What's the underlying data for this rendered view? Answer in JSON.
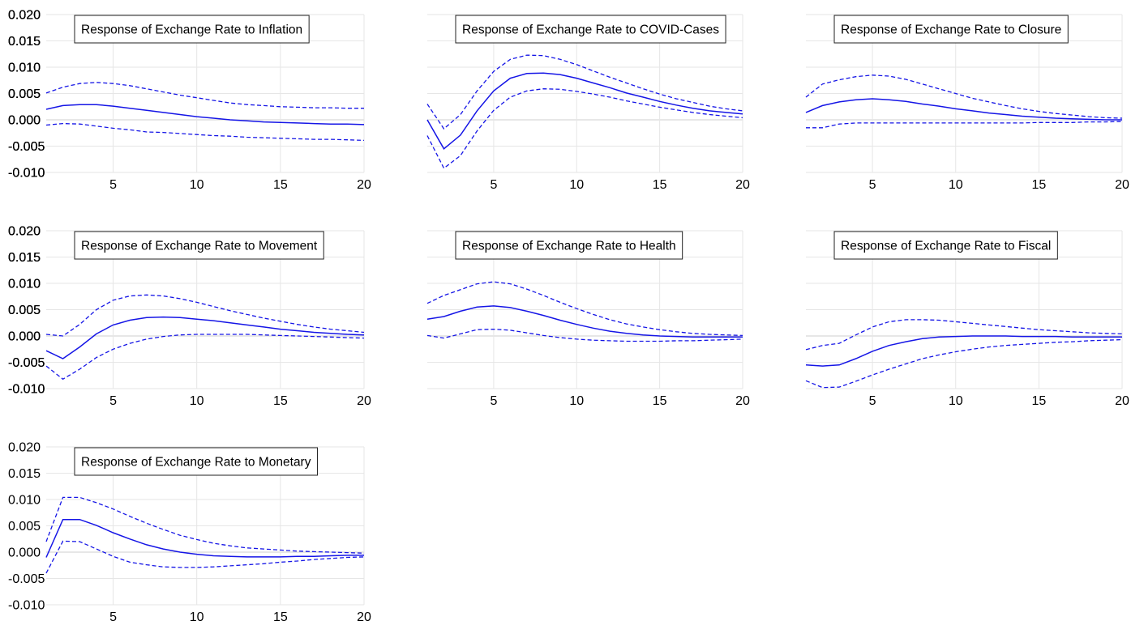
{
  "colors": {
    "line": "#1515e6",
    "grid": "#e6e6e6",
    "background": "#ffffff"
  },
  "chart_data": [
    {
      "type": "line",
      "title": "Response of Exchange Rate to Inflation",
      "x": [
        1,
        2,
        3,
        4,
        5,
        6,
        7,
        8,
        9,
        10,
        11,
        12,
        13,
        14,
        15,
        16,
        17,
        18,
        19,
        20
      ],
      "ylim": [
        -0.01,
        0.02
      ],
      "yticks": [
        "0.020",
        "0.015",
        "0.010",
        "0.005",
        "0.000",
        "-0.005",
        "-0.010"
      ],
      "xticks": [
        "5",
        "10",
        "15",
        "20"
      ],
      "series": [
        {
          "style": "dashed",
          "values": [
            0.0051,
            0.0062,
            0.0069,
            0.0071,
            0.0069,
            0.0065,
            0.0059,
            0.0053,
            0.0047,
            0.0042,
            0.0037,
            0.0032,
            0.0029,
            0.0027,
            0.0025,
            0.0024,
            0.0023,
            0.0023,
            0.0022,
            0.0022
          ]
        },
        {
          "style": "solid",
          "values": [
            0.002,
            0.0027,
            0.0029,
            0.0029,
            0.0026,
            0.0022,
            0.0018,
            0.0014,
            0.001,
            0.0006,
            0.0003,
            0.0,
            -0.0002,
            -0.0004,
            -0.0005,
            -0.0006,
            -0.0007,
            -0.0008,
            -0.0008,
            -0.0009
          ]
        },
        {
          "style": "dashed",
          "values": [
            -0.001,
            -0.0007,
            -0.0008,
            -0.0012,
            -0.0016,
            -0.0019,
            -0.0023,
            -0.0024,
            -0.0026,
            -0.0028,
            -0.003,
            -0.0031,
            -0.0033,
            -0.0034,
            -0.0035,
            -0.0036,
            -0.0037,
            -0.0037,
            -0.0038,
            -0.0039
          ]
        }
      ]
    },
    {
      "type": "line",
      "title": "Response of Exchange Rate to COVID-Cases",
      "x": [
        1,
        2,
        3,
        4,
        5,
        6,
        7,
        8,
        9,
        10,
        11,
        12,
        13,
        14,
        15,
        16,
        17,
        18,
        19,
        20
      ],
      "ylim": [
        -0.01,
        0.02
      ],
      "yticks": [
        "0.020",
        "0.015",
        "0.010",
        "0.005",
        "0.000",
        "-0.005",
        "-0.010"
      ],
      "xticks": [
        "5",
        "10",
        "15",
        "20"
      ],
      "series": [
        {
          "style": "dashed",
          "values": [
            0.003,
            -0.0017,
            0.001,
            0.0055,
            0.0092,
            0.0115,
            0.0123,
            0.0122,
            0.0115,
            0.0105,
            0.0093,
            0.0081,
            0.007,
            0.0059,
            0.0049,
            0.004,
            0.0033,
            0.0026,
            0.0021,
            0.0017
          ]
        },
        {
          "style": "solid",
          "values": [
            0.0,
            -0.0055,
            -0.0029,
            0.0017,
            0.0055,
            0.0079,
            0.0088,
            0.0089,
            0.0086,
            0.0079,
            0.007,
            0.0061,
            0.0051,
            0.0043,
            0.0035,
            0.0028,
            0.0022,
            0.0017,
            0.0014,
            0.0011
          ]
        },
        {
          "style": "dashed",
          "values": [
            -0.003,
            -0.0092,
            -0.0068,
            -0.0021,
            0.0018,
            0.0043,
            0.0055,
            0.0059,
            0.0058,
            0.0054,
            0.0049,
            0.0043,
            0.0036,
            0.003,
            0.0024,
            0.0019,
            0.0014,
            0.001,
            0.0007,
            0.0004
          ]
        }
      ]
    },
    {
      "type": "line",
      "title": "Response of Exchange Rate to Closure",
      "x": [
        1,
        2,
        3,
        4,
        5,
        6,
        7,
        8,
        9,
        10,
        11,
        12,
        13,
        14,
        15,
        16,
        17,
        18,
        19,
        20
      ],
      "ylim": [
        -0.01,
        0.02
      ],
      "yticks": [
        "0.020",
        "0.015",
        "0.010",
        "0.005",
        "0.000",
        "-0.005",
        "-0.010"
      ],
      "xticks": [
        "5",
        "10",
        "15",
        "20"
      ],
      "series": [
        {
          "style": "dashed",
          "values": [
            0.0043,
            0.0068,
            0.0076,
            0.0082,
            0.0085,
            0.0083,
            0.0077,
            0.0068,
            0.0059,
            0.005,
            0.0041,
            0.0034,
            0.0027,
            0.0021,
            0.0016,
            0.0012,
            0.0009,
            0.0006,
            0.0004,
            0.0003
          ]
        },
        {
          "style": "solid",
          "values": [
            0.0014,
            0.0027,
            0.0034,
            0.0038,
            0.004,
            0.0038,
            0.0035,
            0.003,
            0.0026,
            0.0021,
            0.0017,
            0.0013,
            0.001,
            0.0007,
            0.0005,
            0.0003,
            0.0002,
            0.0001,
            0.0,
            0.0
          ]
        },
        {
          "style": "dashed",
          "values": [
            -0.0015,
            -0.0015,
            -0.0008,
            -0.0006,
            -0.0006,
            -0.0006,
            -0.0006,
            -0.0006,
            -0.0006,
            -0.0006,
            -0.0006,
            -0.0006,
            -0.0006,
            -0.0006,
            -0.0005,
            -0.0005,
            -0.0005,
            -0.0004,
            -0.0004,
            -0.0003
          ]
        }
      ]
    },
    {
      "type": "line",
      "title": "Response of Exchange Rate to Movement",
      "x": [
        1,
        2,
        3,
        4,
        5,
        6,
        7,
        8,
        9,
        10,
        11,
        12,
        13,
        14,
        15,
        16,
        17,
        18,
        19,
        20
      ],
      "ylim": [
        -0.01,
        0.02
      ],
      "yticks": [
        "0.020",
        "0.015",
        "0.010",
        "0.005",
        "0.000",
        "-0.005",
        "-0.010"
      ],
      "xticks": [
        "5",
        "10",
        "15",
        "20"
      ],
      "series": [
        {
          "style": "dashed",
          "values": [
            0.0003,
            0.0,
            0.0022,
            0.005,
            0.0068,
            0.0076,
            0.0078,
            0.0076,
            0.0071,
            0.0064,
            0.0056,
            0.0048,
            0.0041,
            0.0034,
            0.0028,
            0.0022,
            0.0017,
            0.0013,
            0.001,
            0.0007
          ]
        },
        {
          "style": "solid",
          "values": [
            -0.0028,
            -0.0043,
            -0.0021,
            0.0004,
            0.0021,
            0.003,
            0.0035,
            0.0036,
            0.0035,
            0.0032,
            0.0029,
            0.0025,
            0.0021,
            0.0017,
            0.0013,
            0.001,
            0.0007,
            0.0005,
            0.0003,
            0.0002
          ]
        },
        {
          "style": "dashed",
          "values": [
            -0.0057,
            -0.0082,
            -0.0063,
            -0.0041,
            -0.0025,
            -0.0014,
            -0.0006,
            -0.0001,
            0.0002,
            0.0003,
            0.0003,
            0.0003,
            0.0003,
            0.0002,
            0.0001,
            0.0,
            -0.0001,
            -0.0002,
            -0.0003,
            -0.0004
          ]
        }
      ]
    },
    {
      "type": "line",
      "title": "Response of Exchange Rate to Health",
      "x": [
        1,
        2,
        3,
        4,
        5,
        6,
        7,
        8,
        9,
        10,
        11,
        12,
        13,
        14,
        15,
        16,
        17,
        18,
        19,
        20
      ],
      "ylim": [
        -0.01,
        0.02
      ],
      "yticks": [
        "0.020",
        "0.015",
        "0.010",
        "0.005",
        "0.000",
        "-0.005",
        "-0.010"
      ],
      "xticks": [
        "5",
        "10",
        "15",
        "20"
      ],
      "series": [
        {
          "style": "dashed",
          "values": [
            0.0062,
            0.0077,
            0.0088,
            0.0099,
            0.0103,
            0.0099,
            0.0089,
            0.0077,
            0.0064,
            0.0052,
            0.0041,
            0.0031,
            0.0023,
            0.0017,
            0.0012,
            0.0008,
            0.0005,
            0.0003,
            0.0002,
            0.0001
          ]
        },
        {
          "style": "solid",
          "values": [
            0.0032,
            0.0037,
            0.0047,
            0.0055,
            0.0057,
            0.0054,
            0.0047,
            0.0039,
            0.003,
            0.0022,
            0.0015,
            0.0009,
            0.0005,
            0.0002,
            0.0,
            -0.0001,
            -0.0002,
            -0.0002,
            -0.0002,
            -0.0002
          ]
        },
        {
          "style": "dashed",
          "values": [
            0.0001,
            -0.0004,
            0.0004,
            0.0012,
            0.0013,
            0.0011,
            0.0006,
            0.0001,
            -0.0003,
            -0.0006,
            -0.0008,
            -0.0009,
            -0.001,
            -0.001,
            -0.001,
            -0.0009,
            -0.0009,
            -0.0008,
            -0.0007,
            -0.0006
          ]
        }
      ]
    },
    {
      "type": "line",
      "title": "Response of Exchange Rate to Fiscal",
      "x": [
        1,
        2,
        3,
        4,
        5,
        6,
        7,
        8,
        9,
        10,
        11,
        12,
        13,
        14,
        15,
        16,
        17,
        18,
        19,
        20
      ],
      "ylim": [
        -0.01,
        0.02
      ],
      "yticks": [
        "0.020",
        "0.015",
        "0.010",
        "0.005",
        "0.000",
        "-0.005",
        "-0.010"
      ],
      "xticks": [
        "5",
        "10",
        "15",
        "20"
      ],
      "series": [
        {
          "style": "dashed",
          "values": [
            -0.0026,
            -0.0018,
            -0.0014,
            0.0002,
            0.0017,
            0.0027,
            0.0031,
            0.0031,
            0.003,
            0.0027,
            0.0024,
            0.0021,
            0.0018,
            0.0015,
            0.0012,
            0.001,
            0.0008,
            0.0006,
            0.0005,
            0.0004
          ]
        },
        {
          "style": "solid",
          "values": [
            -0.0055,
            -0.0057,
            -0.0055,
            -0.0043,
            -0.0029,
            -0.0018,
            -0.0011,
            -0.0005,
            -0.0002,
            -0.0001,
            0.0,
            0.0,
            0.0,
            -0.0001,
            -0.0001,
            -0.0001,
            -0.0002,
            -0.0002,
            -0.0002,
            -0.0002
          ]
        },
        {
          "style": "dashed",
          "values": [
            -0.0085,
            -0.0098,
            -0.0097,
            -0.0086,
            -0.0074,
            -0.0063,
            -0.0053,
            -0.0043,
            -0.0036,
            -0.003,
            -0.0025,
            -0.0021,
            -0.0018,
            -0.0016,
            -0.0014,
            -0.0012,
            -0.0011,
            -0.0009,
            -0.0008,
            -0.0007
          ]
        }
      ]
    },
    {
      "type": "line",
      "title": "Response of Exchange Rate to Monetary",
      "x": [
        1,
        2,
        3,
        4,
        5,
        6,
        7,
        8,
        9,
        10,
        11,
        12,
        13,
        14,
        15,
        16,
        17,
        18,
        19,
        20
      ],
      "ylim": [
        -0.01,
        0.02
      ],
      "yticks": [
        "0.020",
        "0.015",
        "0.010",
        "0.005",
        "0.000",
        "-0.005",
        "-0.010"
      ],
      "xticks": [
        "5",
        "10",
        "15",
        "20"
      ],
      "series": [
        {
          "style": "dashed",
          "values": [
            0.002,
            0.0104,
            0.0104,
            0.0094,
            0.0082,
            0.0068,
            0.0055,
            0.0043,
            0.0032,
            0.0024,
            0.0017,
            0.0012,
            0.0008,
            0.0006,
            0.0004,
            0.0002,
            0.0001,
            0.0,
            -0.0001,
            -0.0002
          ]
        },
        {
          "style": "solid",
          "values": [
            -0.001,
            0.0062,
            0.0062,
            0.0051,
            0.0037,
            0.0025,
            0.0014,
            0.0006,
            0.0,
            -0.0004,
            -0.0007,
            -0.0008,
            -0.0009,
            -0.0009,
            -0.0009,
            -0.0008,
            -0.0008,
            -0.0007,
            -0.0006,
            -0.0006
          ]
        },
        {
          "style": "dashed",
          "values": [
            -0.004,
            0.0021,
            0.002,
            0.0006,
            -0.0008,
            -0.0019,
            -0.0024,
            -0.0028,
            -0.0029,
            -0.0029,
            -0.0028,
            -0.0026,
            -0.0024,
            -0.0022,
            -0.0019,
            -0.0017,
            -0.0014,
            -0.0012,
            -0.001,
            -0.0009
          ]
        }
      ]
    }
  ]
}
